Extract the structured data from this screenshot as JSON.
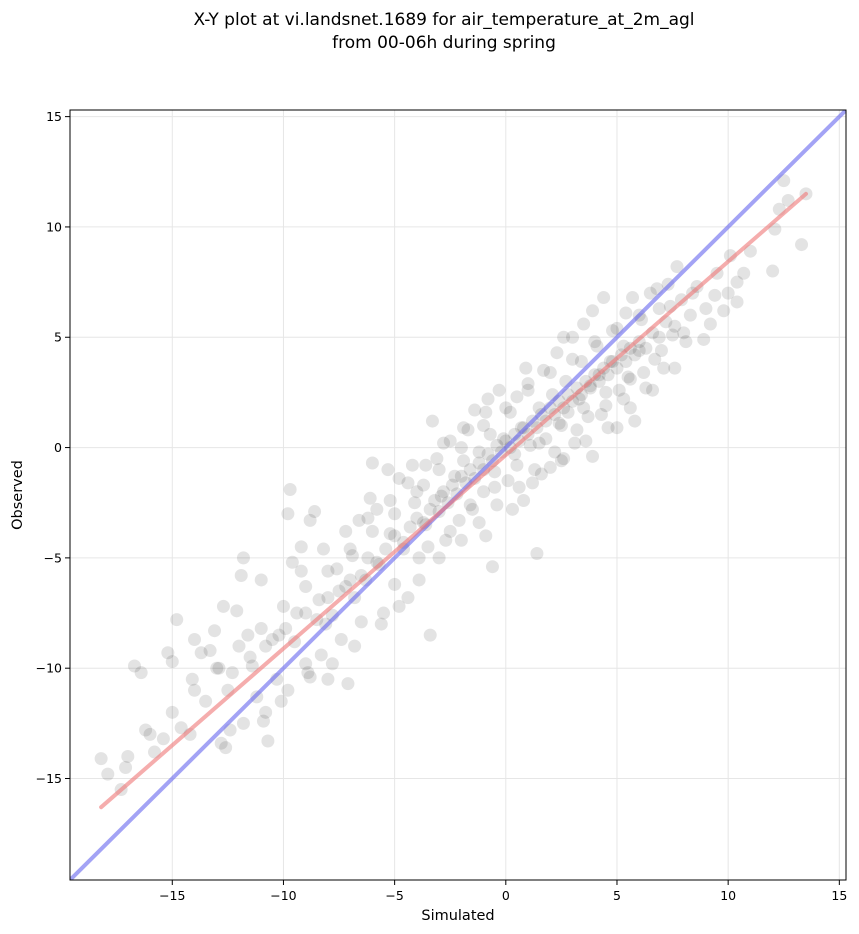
{
  "chart_data": {
    "type": "scatter",
    "title": "X-Y plot at vi.landsnet.1689 for air_temperature_at_2m_agl",
    "subtitle": "from 00-06h during spring",
    "xlabel": "Simulated",
    "ylabel": "Observed",
    "xlim": [
      -19.6,
      15.3
    ],
    "ylim": [
      -19.6,
      15.3
    ],
    "xticks": [
      -15,
      -10,
      -5,
      0,
      5,
      10,
      15
    ],
    "yticks": [
      -15,
      -10,
      -5,
      0,
      5,
      10,
      15
    ],
    "xtick_labels": [
      "−15",
      "−10",
      "−5",
      "0",
      "5",
      "10",
      "15"
    ],
    "ytick_labels": [
      "−15",
      "−10",
      "−5",
      "0",
      "5",
      "10",
      "15"
    ],
    "grid": true,
    "point_color": "#000000",
    "one_to_one_line": {
      "color": "#6666ee",
      "from": [
        -19.6,
        -19.6
      ],
      "to": [
        15.3,
        15.3
      ]
    },
    "fit_line": {
      "color": "#ee7777",
      "from": [
        -18.2,
        -16.3
      ],
      "to": [
        13.5,
        11.5
      ]
    },
    "points": [
      [
        -18.2,
        -14.1
      ],
      [
        -17.9,
        -14.8
      ],
      [
        -17.3,
        -15.5
      ],
      [
        -17.1,
        -14.5
      ],
      [
        -16.7,
        -9.9
      ],
      [
        -16.4,
        -10.2
      ],
      [
        -16.2,
        -12.8
      ],
      [
        -15.8,
        -13.8
      ],
      [
        -15.4,
        -13.2
      ],
      [
        -15.2,
        -9.3
      ],
      [
        -15.0,
        -9.7
      ],
      [
        -14.8,
        -7.8
      ],
      [
        -14.6,
        -12.7
      ],
      [
        -14.2,
        -13.0
      ],
      [
        -14.1,
        -10.5
      ],
      [
        -14.0,
        -8.7
      ],
      [
        -13.7,
        -9.3
      ],
      [
        -13.5,
        -11.5
      ],
      [
        -13.3,
        -9.2
      ],
      [
        -13.1,
        -8.3
      ],
      [
        -12.9,
        -10.0
      ],
      [
        -12.7,
        -7.2
      ],
      [
        -12.6,
        -13.6
      ],
      [
        -12.4,
        -12.8
      ],
      [
        -12.3,
        -10.2
      ],
      [
        -12.1,
        -7.4
      ],
      [
        -11.9,
        -5.8
      ],
      [
        -11.8,
        -5.0
      ],
      [
        -11.6,
        -8.5
      ],
      [
        -11.4,
        -9.9
      ],
      [
        -11.2,
        -11.3
      ],
      [
        -11.0,
        -6.0
      ],
      [
        -10.9,
        -12.4
      ],
      [
        -10.7,
        -13.3
      ],
      [
        -10.5,
        -8.7
      ],
      [
        -10.3,
        -10.5
      ],
      [
        -10.1,
        -11.5
      ],
      [
        -9.9,
        -8.2
      ],
      [
        -9.8,
        -3.0
      ],
      [
        -9.7,
        -1.9
      ],
      [
        -9.6,
        -5.2
      ],
      [
        -9.4,
        -7.5
      ],
      [
        -9.2,
        -4.5
      ],
      [
        -9.0,
        -9.8
      ],
      [
        -8.9,
        -10.2
      ],
      [
        -8.8,
        -3.3
      ],
      [
        -8.6,
        -2.9
      ],
      [
        -8.4,
        -6.9
      ],
      [
        -8.3,
        -9.4
      ],
      [
        -8.1,
        -8.0
      ],
      [
        -8.0,
        -10.5
      ],
      [
        -7.8,
        -7.6
      ],
      [
        -7.6,
        -5.5
      ],
      [
        -7.4,
        -8.7
      ],
      [
        -7.2,
        -6.3
      ],
      [
        -7.1,
        -10.7
      ],
      [
        -6.9,
        -4.9
      ],
      [
        -6.8,
        -6.8
      ],
      [
        -6.6,
        -3.3
      ],
      [
        -6.5,
        -7.9
      ],
      [
        -6.3,
        -6.0
      ],
      [
        -6.1,
        -2.3
      ],
      [
        -6.0,
        -0.7
      ],
      [
        -5.8,
        -2.8
      ],
      [
        -5.7,
        -5.3
      ],
      [
        -5.5,
        -7.5
      ],
      [
        -5.3,
        -1.0
      ],
      [
        -5.2,
        -3.9
      ],
      [
        -5.0,
        -6.2
      ],
      [
        -4.8,
        -1.4
      ],
      [
        -4.6,
        -4.6
      ],
      [
        -4.4,
        -6.8
      ],
      [
        -4.2,
        -0.8
      ],
      [
        -4.1,
        -2.5
      ],
      [
        -3.9,
        -5.0
      ],
      [
        -3.7,
        -1.7
      ],
      [
        -3.6,
        -3.5
      ],
      [
        -3.4,
        -8.5
      ],
      [
        -3.3,
        1.2
      ],
      [
        -3.1,
        -0.5
      ],
      [
        -2.9,
        -2.2
      ],
      [
        -2.7,
        -4.2
      ],
      [
        -2.5,
        0.3
      ],
      [
        -2.3,
        -1.3
      ],
      [
        -2.1,
        -3.3
      ],
      [
        -1.9,
        -0.6
      ],
      [
        -1.7,
        0.8
      ],
      [
        -1.6,
        -2.6
      ],
      [
        -1.4,
        1.7
      ],
      [
        -1.2,
        -0.2
      ],
      [
        -1.0,
        -2.0
      ],
      [
        -0.9,
        -4.0
      ],
      [
        -0.7,
        0.6
      ],
      [
        -0.6,
        -5.4
      ],
      [
        -0.5,
        -1.1
      ],
      [
        -0.3,
        2.6
      ],
      [
        -0.1,
        0.4
      ],
      [
        0.1,
        -1.5
      ],
      [
        0.2,
        1.6
      ],
      [
        0.4,
        -0.3
      ],
      [
        0.5,
        2.3
      ],
      [
        0.7,
        0.9
      ],
      [
        0.8,
        -2.4
      ],
      [
        1.0,
        2.9
      ],
      [
        1.1,
        0.1
      ],
      [
        1.3,
        -1.0
      ],
      [
        1.4,
        -4.8
      ],
      [
        1.5,
        1.8
      ],
      [
        1.7,
        3.5
      ],
      [
        1.8,
        0.4
      ],
      [
        2.0,
        -0.9
      ],
      [
        2.1,
        2.4
      ],
      [
        2.3,
        4.3
      ],
      [
        2.4,
        1.1
      ],
      [
        2.5,
        -0.6
      ],
      [
        2.7,
        3.0
      ],
      [
        2.8,
        1.6
      ],
      [
        3.0,
        5.0
      ],
      [
        3.1,
        0.2
      ],
      [
        3.3,
        2.2
      ],
      [
        3.4,
        3.9
      ],
      [
        3.5,
        5.6
      ],
      [
        3.7,
        1.4
      ],
      [
        3.8,
        2.8
      ],
      [
        3.9,
        -0.4
      ],
      [
        4.1,
        4.6
      ],
      [
        4.2,
        3.3
      ],
      [
        4.4,
        6.8
      ],
      [
        4.5,
        1.9
      ],
      [
        4.7,
        3.9
      ],
      [
        4.8,
        5.3
      ],
      [
        5.0,
        0.9
      ],
      [
        5.1,
        2.6
      ],
      [
        5.3,
        4.6
      ],
      [
        5.4,
        6.1
      ],
      [
        5.6,
        3.1
      ],
      [
        5.8,
        1.2
      ],
      [
        6.0,
        4.4
      ],
      [
        6.1,
        5.8
      ],
      [
        6.3,
        2.7
      ],
      [
        6.5,
        7.0
      ],
      [
        6.7,
        4.0
      ],
      [
        6.9,
        6.3
      ],
      [
        7.1,
        3.6
      ],
      [
        7.3,
        7.4
      ],
      [
        7.5,
        5.1
      ],
      [
        7.7,
        8.2
      ],
      [
        7.9,
        6.7
      ],
      [
        8.1,
        4.8
      ],
      [
        8.3,
        6.0
      ],
      [
        8.6,
        7.3
      ],
      [
        8.9,
        4.9
      ],
      [
        9.2,
        5.6
      ],
      [
        9.5,
        7.9
      ],
      [
        9.8,
        6.2
      ],
      [
        10.1,
        8.7
      ],
      [
        10.4,
        6.6
      ],
      [
        10.7,
        7.9
      ],
      [
        12.0,
        8.0
      ],
      [
        12.1,
        9.9
      ],
      [
        12.3,
        10.8
      ],
      [
        12.5,
        12.1
      ],
      [
        12.7,
        11.2
      ],
      [
        13.3,
        9.2
      ],
      [
        13.5,
        11.5
      ],
      [
        -12.5,
        -11.0
      ],
      [
        -11.5,
        -9.5
      ],
      [
        -10.8,
        -9.0
      ],
      [
        -10.2,
        -8.5
      ],
      [
        -9.5,
        -8.8
      ],
      [
        -9.0,
        -7.5
      ],
      [
        -8.5,
        -7.8
      ],
      [
        -8.0,
        -6.8
      ],
      [
        -7.5,
        -6.5
      ],
      [
        -7.0,
        -6.0
      ],
      [
        -6.5,
        -5.8
      ],
      [
        -6.2,
        -5.0
      ],
      [
        -5.8,
        -5.2
      ],
      [
        -5.4,
        -4.6
      ],
      [
        -5.0,
        -4.0
      ],
      [
        -4.6,
        -4.3
      ],
      [
        -4.3,
        -3.6
      ],
      [
        -4.0,
        -3.2
      ],
      [
        -3.7,
        -3.4
      ],
      [
        -3.4,
        -2.8
      ],
      [
        -3.2,
        -2.4
      ],
      [
        -3.0,
        -2.9
      ],
      [
        -2.8,
        -2.0
      ],
      [
        -2.6,
        -2.5
      ],
      [
        -2.4,
        -1.7
      ],
      [
        -2.2,
        -2.1
      ],
      [
        -2.0,
        -1.3
      ],
      [
        -1.8,
        -1.6
      ],
      [
        -1.6,
        -1.0
      ],
      [
        -1.4,
        -1.4
      ],
      [
        -1.2,
        -0.7
      ],
      [
        -1.0,
        -1.0
      ],
      [
        -0.8,
        -0.3
      ],
      [
        -0.6,
        -0.6
      ],
      [
        -0.4,
        0.1
      ],
      [
        -0.2,
        -0.2
      ],
      [
        0.0,
        0.3
      ],
      [
        0.2,
        0.0
      ],
      [
        0.4,
        0.6
      ],
      [
        0.6,
        0.3
      ],
      [
        0.8,
        0.9
      ],
      [
        1.0,
        0.6
      ],
      [
        1.2,
        1.2
      ],
      [
        1.4,
        0.9
      ],
      [
        1.6,
        1.5
      ],
      [
        1.8,
        1.2
      ],
      [
        2.0,
        1.8
      ],
      [
        2.2,
        1.5
      ],
      [
        2.4,
        2.1
      ],
      [
        2.6,
        1.8
      ],
      [
        2.8,
        2.4
      ],
      [
        3.0,
        2.1
      ],
      [
        3.2,
        2.7
      ],
      [
        3.4,
        2.4
      ],
      [
        3.6,
        3.0
      ],
      [
        3.8,
        2.7
      ],
      [
        4.0,
        3.3
      ],
      [
        4.2,
        3.0
      ],
      [
        4.4,
        3.6
      ],
      [
        4.6,
        3.3
      ],
      [
        4.8,
        3.9
      ],
      [
        5.0,
        3.6
      ],
      [
        5.2,
        4.2
      ],
      [
        5.4,
        3.9
      ],
      [
        5.6,
        4.5
      ],
      [
        5.8,
        4.2
      ],
      [
        6.0,
        4.8
      ],
      [
        6.3,
        4.5
      ],
      [
        6.6,
        5.2
      ],
      [
        6.9,
        5.0
      ],
      [
        7.2,
        5.7
      ],
      [
        7.6,
        5.5
      ],
      [
        -3.5,
        -4.5
      ],
      [
        -2.5,
        -3.8
      ],
      [
        -1.5,
        -2.8
      ],
      [
        -0.5,
        -1.8
      ],
      [
        0.5,
        -0.8
      ],
      [
        1.5,
        0.2
      ],
      [
        2.5,
        1.0
      ],
      [
        3.5,
        1.8
      ],
      [
        4.5,
        2.5
      ],
      [
        5.5,
        3.2
      ],
      [
        -1.0,
        1.0
      ],
      [
        0.0,
        1.8
      ],
      [
        1.0,
        2.6
      ],
      [
        2.0,
        3.4
      ],
      [
        3.0,
        4.0
      ],
      [
        4.0,
        4.8
      ],
      [
        5.0,
        5.4
      ],
      [
        6.0,
        6.0
      ],
      [
        -2.0,
        0.0
      ],
      [
        -3.0,
        -1.0
      ],
      [
        -4.0,
        -2.0
      ],
      [
        -5.0,
        -3.0
      ],
      [
        -6.0,
        -3.8
      ],
      [
        -7.0,
        -4.6
      ],
      [
        -8.0,
        -5.6
      ],
      [
        -9.0,
        -6.3
      ],
      [
        -10.0,
        -7.2
      ],
      [
        -11.0,
        -8.2
      ],
      [
        -12.0,
        -9.0
      ],
      [
        -13.0,
        -10.0
      ],
      [
        -14.0,
        -11.0
      ],
      [
        -15.0,
        -12.0
      ],
      [
        -16.0,
        -13.0
      ],
      [
        -17.0,
        -14.0
      ],
      [
        0.3,
        -2.8
      ],
      [
        1.2,
        -1.6
      ],
      [
        2.2,
        -0.2
      ],
      [
        3.2,
        0.8
      ],
      [
        4.3,
        1.5
      ],
      [
        5.3,
        2.2
      ],
      [
        6.2,
        3.4
      ],
      [
        7.0,
        4.4
      ],
      [
        8.0,
        5.2
      ],
      [
        9.0,
        6.3
      ],
      [
        10.0,
        7.0
      ],
      [
        -0.8,
        2.2
      ],
      [
        0.9,
        3.6
      ],
      [
        2.6,
        5.0
      ],
      [
        3.9,
        6.2
      ],
      [
        5.7,
        6.8
      ],
      [
        6.8,
        7.2
      ],
      [
        7.4,
        6.4
      ],
      [
        8.4,
        7.0
      ],
      [
        9.4,
        6.9
      ],
      [
        10.4,
        7.5
      ],
      [
        11.0,
        8.9
      ],
      [
        -6.8,
        -9.0
      ],
      [
        -7.8,
        -9.8
      ],
      [
        -8.8,
        -10.4
      ],
      [
        -9.8,
        -11.0
      ],
      [
        -10.8,
        -12.0
      ],
      [
        -11.8,
        -12.5
      ],
      [
        -12.8,
        -13.4
      ],
      [
        -5.6,
        -8.0
      ],
      [
        -4.8,
        -7.2
      ],
      [
        -3.9,
        -6.0
      ],
      [
        -3.0,
        -5.0
      ],
      [
        -2.0,
        -4.2
      ],
      [
        -1.2,
        -3.4
      ],
      [
        -0.4,
        -2.6
      ],
      [
        0.6,
        -1.8
      ],
      [
        1.6,
        -1.2
      ],
      [
        2.6,
        -0.5
      ],
      [
        3.6,
        0.3
      ],
      [
        4.6,
        0.9
      ],
      [
        5.6,
        1.8
      ],
      [
        6.6,
        2.6
      ],
      [
        7.6,
        3.6
      ],
      [
        -9.2,
        -5.6
      ],
      [
        -8.2,
        -4.6
      ],
      [
        -7.2,
        -3.8
      ],
      [
        -6.2,
        -3.2
      ],
      [
        -5.2,
        -2.4
      ],
      [
        -4.4,
        -1.6
      ],
      [
        -3.6,
        -0.8
      ],
      [
        -2.8,
        0.2
      ],
      [
        -1.9,
        0.9
      ],
      [
        -0.9,
        1.6
      ]
    ]
  }
}
